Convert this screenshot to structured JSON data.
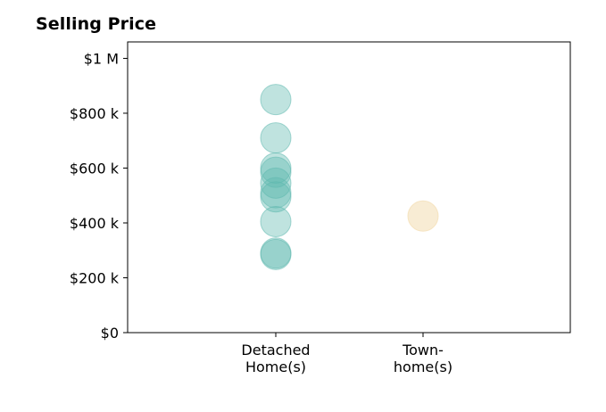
{
  "chart_data": {
    "type": "scatter",
    "title": "Selling Price",
    "xlabel": "",
    "ylabel": "",
    "categories": [
      [
        "Detached",
        "Home(s)"
      ],
      [
        "Town-",
        "home(s)"
      ]
    ],
    "ylim": [
      0,
      1060000
    ],
    "yticks": [
      {
        "value": 0,
        "label": "$0"
      },
      {
        "value": 200000,
        "label": "$200 k"
      },
      {
        "value": 400000,
        "label": "$400 k"
      },
      {
        "value": 600000,
        "label": "$600 k"
      },
      {
        "value": 800000,
        "label": "$800 k"
      },
      {
        "value": 1000000,
        "label": "$1 M"
      }
    ],
    "grid": false,
    "series": [
      {
        "category_index": 0,
        "color": "#5fb8ae",
        "opacity": 0.4,
        "values": [
          850000,
          710000,
          600000,
          585000,
          545000,
          510000,
          495000,
          405000,
          290000,
          285000
        ]
      },
      {
        "category_index": 1,
        "color": "#f3ddb0",
        "opacity": 0.55,
        "values": [
          425000
        ]
      }
    ]
  }
}
